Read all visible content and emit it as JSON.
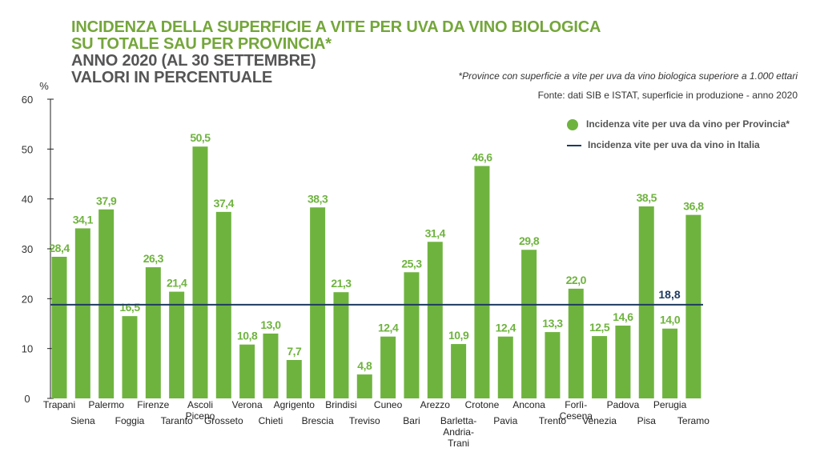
{
  "title_lines": [
    "INCIDENZA DELLA SUPERFICIE A VITE PER UVA DA VINO BIOLOGICA",
    "SU TOTALE SAU PER PROVINCIA*",
    "ANNO 2020 (AL 30 SETTEMBRE)",
    "VALORI IN PERCENTUALE"
  ],
  "footnote": "*Province con superficie a vite per uva da vino biologica superiore a 1.000 ettari",
  "source": "Fonte: dati SIB e ISTAT, superficie in produzione - anno 2020",
  "legend": {
    "bar": "Incidenza vite per uva da vino per Provincia*",
    "line": "Incidenza vite per uva da vino in Italia"
  },
  "colors": {
    "bar": "#6fb33f",
    "line": "#1f3a60",
    "title_green": "#74a63a"
  },
  "chart_data": {
    "type": "bar",
    "ylabel": "%",
    "ylim": [
      0,
      60
    ],
    "yticks": [
      0,
      10,
      20,
      30,
      40,
      50,
      60
    ],
    "categories": [
      "Trapani",
      "Siena",
      "Palermo",
      "Foggia",
      "Firenze",
      "Taranto",
      "Ascoli Piceno",
      "Grosseto",
      "Verona",
      "Chieti",
      "Agrigento",
      "Brescia",
      "Brindisi",
      "Treviso",
      "Cuneo",
      "Bari",
      "Arezzo",
      "Barletta-Andria-Trani",
      "Crotone",
      "Pavia",
      "Ancona",
      "Trento",
      "Forlì-Cesena",
      "Venezia",
      "Padova",
      "Pisa",
      "Perugia",
      "Teramo"
    ],
    "labels": [
      "Trapani",
      "Siena",
      "Palermo",
      "Foggia",
      "Firenze",
      "Taranto",
      "Ascoli\nPiceno",
      "Grosseto",
      "Verona",
      "Chieti",
      "Agrigento",
      "Brescia",
      "Brindisi",
      "Treviso",
      "Cuneo",
      "Bari",
      "Arezzo",
      "Barletta-\nAndria-\nTrani",
      "Crotone",
      "Pavia",
      "Ancona",
      "Trento",
      "Forlì-\nCesena",
      "Venezia",
      "Padova",
      "Pisa",
      "Perugia",
      "Teramo"
    ],
    "values": [
      28.4,
      34.1,
      37.9,
      16.5,
      26.3,
      21.4,
      50.5,
      37.4,
      10.8,
      13.0,
      7.7,
      38.3,
      21.3,
      4.8,
      12.4,
      25.3,
      31.4,
      10.9,
      46.6,
      12.4,
      29.8,
      13.3,
      22.0,
      12.5,
      14.6,
      38.5,
      14.0,
      36.8
    ],
    "value_labels": [
      "28,4",
      "34,1",
      "37,9",
      "16,5",
      "26,3",
      "21,4",
      "50,5",
      "37,4",
      "10,8",
      "13,0",
      "7,7",
      "38,3",
      "21,3",
      "4,8",
      "12,4",
      "25,3",
      "31,4",
      "10,9",
      "46,6",
      "12,4",
      "29,8",
      "13,3",
      "22,0",
      "12,5",
      "14,6",
      "38,5",
      "14,0",
      "36,8"
    ],
    "reference_line": {
      "name": "Incidenza vite per uva da vino in Italia",
      "value": 18.8,
      "label": "18,8"
    },
    "grid": false,
    "legend_position": "top-right"
  }
}
